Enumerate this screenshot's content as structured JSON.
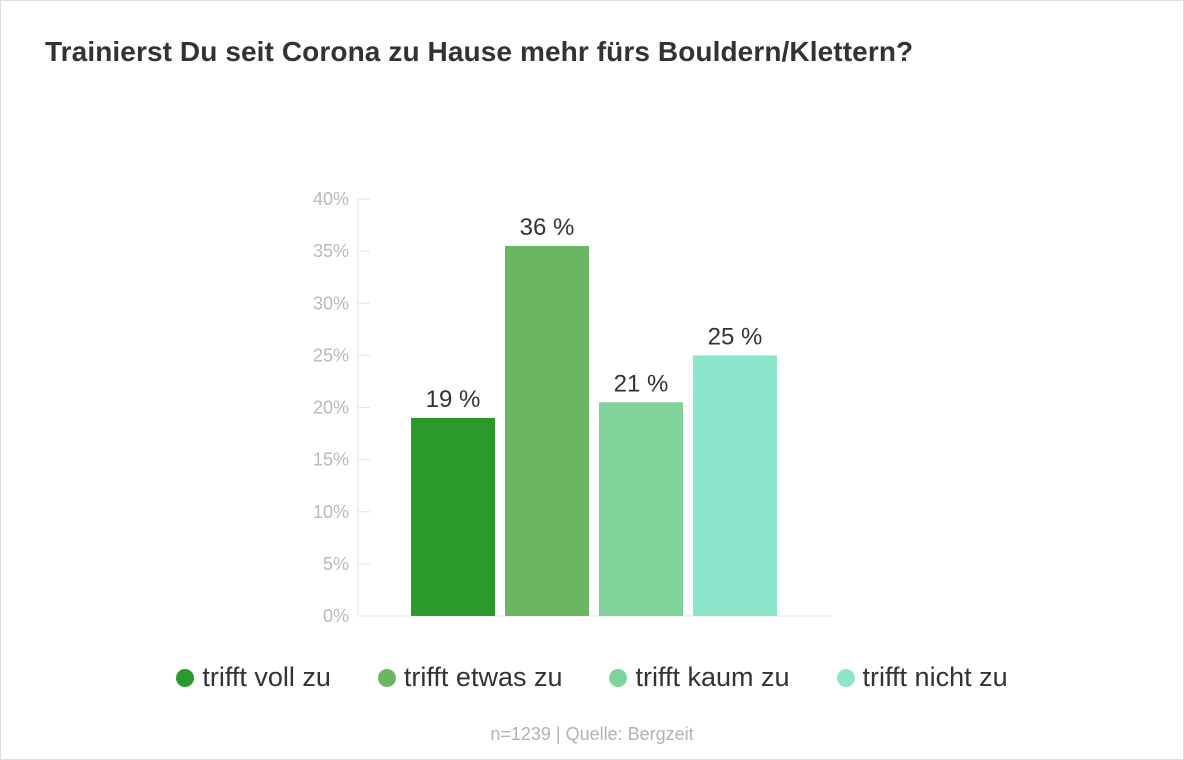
{
  "title": "Trainierst Du seit Corona zu Hause mehr fürs Bouldern/Klettern?",
  "footer": "n=1239 | Quelle: Bergzeit",
  "chart_data": {
    "type": "bar",
    "title": "Trainierst Du seit Corona zu Hause mehr fürs Bouldern/Klettern?",
    "xlabel": "",
    "ylabel": "",
    "ylim": [
      0,
      40
    ],
    "y_ticks": [
      "0%",
      "5%",
      "10%",
      "15%",
      "20%",
      "25%",
      "30%",
      "35%",
      "40%"
    ],
    "y_tick_values": [
      0,
      5,
      10,
      15,
      20,
      25,
      30,
      35,
      40
    ],
    "grid": false,
    "legend_position": "bottom",
    "categories": [
      "trifft voll zu",
      "trifft etwas zu",
      "trifft kaum zu",
      "trifft nicht zu"
    ],
    "values": [
      19,
      35.5,
      20.5,
      25
    ],
    "data_labels": [
      "19 %",
      "36 %",
      "21 %",
      "25 %"
    ],
    "colors": [
      "#2a9a2a",
      "#6cb563",
      "#7fd29a",
      "#8de6cc"
    ]
  }
}
